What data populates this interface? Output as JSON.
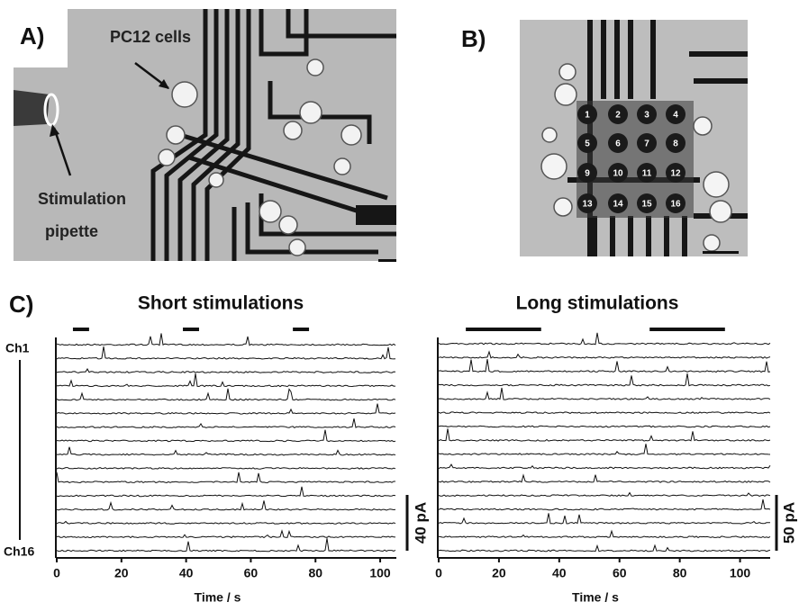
{
  "panel_a": {
    "label": "A)",
    "annotations": [
      "PC12 cells",
      "Stimulation",
      "pipette"
    ]
  },
  "panel_b": {
    "label": "B)",
    "electrodes": [
      "1",
      "2",
      "3",
      "4",
      "5",
      "6",
      "7",
      "8",
      "9",
      "10",
      "11",
      "12",
      "13",
      "14",
      "15",
      "16"
    ]
  },
  "panel_c": {
    "label": "C)",
    "channel_labels": [
      "Ch1",
      "Ch16"
    ]
  },
  "chart_data": [
    {
      "type": "line",
      "title": "Short stimulations",
      "xlabel": "Time / s",
      "xlim": [
        0,
        105
      ],
      "xticks": [
        0,
        20,
        40,
        60,
        80,
        100
      ],
      "stimulations": [
        [
          5,
          10
        ],
        [
          39,
          44
        ],
        [
          73,
          78
        ]
      ],
      "scale_bar": "40 pA"
    },
    {
      "type": "line",
      "title": "Long stimulations",
      "xlabel": "Time / s",
      "xlim": [
        0,
        110
      ],
      "xticks": [
        0,
        20,
        40,
        60,
        80,
        100
      ],
      "stimulations": [
        [
          9,
          34
        ],
        [
          70,
          95
        ]
      ],
      "scale_bar": "50 pA"
    }
  ]
}
